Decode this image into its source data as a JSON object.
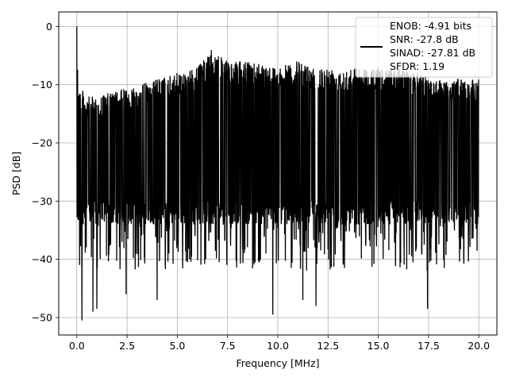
{
  "chart_data": {
    "type": "line",
    "title": "",
    "xlabel": "Frequency [MHz]",
    "ylabel": "PSD [dB]",
    "xlim": [
      -0.9,
      20.9
    ],
    "ylim": [
      -53.0,
      2.5
    ],
    "xticks": [
      0.0,
      2.5,
      5.0,
      7.5,
      10.0,
      12.5,
      15.0,
      17.5,
      20.0
    ],
    "xtick_labels": [
      "0.0",
      "2.5",
      "5.0",
      "7.5",
      "10.0",
      "12.5",
      "15.0",
      "17.5",
      "20.0"
    ],
    "yticks": [
      0,
      -10,
      -20,
      -30,
      -40,
      -50
    ],
    "ytick_labels": [
      "0",
      "−10",
      "−20",
      "−30",
      "−40",
      "−50"
    ],
    "grid": true,
    "legend_position": "upper-right",
    "series": [
      {
        "name": "ENOB: -4.91 bits\nSNR: -27.8 dB\nSINAD: -27.81 dB\nSFDR: 1.19",
        "legend_lines": [
          "ENOB: -4.91 bits",
          "SNR: -27.8 dB",
          "SINAD: -27.81 dB",
          "SFDR: 1.19"
        ],
        "color": "#000000",
        "x_range": [
          0.0,
          20.0
        ],
        "approx_points": 2048,
        "envelope_upper_db": [
          [
            0.0,
            0.0
          ],
          [
            0.1,
            -10
          ],
          [
            0.5,
            -12
          ],
          [
            1.0,
            -12
          ],
          [
            2.0,
            -11
          ],
          [
            3.0,
            -10
          ],
          [
            4.0,
            -9
          ],
          [
            5.0,
            -8
          ],
          [
            6.0,
            -7
          ],
          [
            6.7,
            -4
          ],
          [
            7.5,
            -6
          ],
          [
            9.0,
            -6
          ],
          [
            10.0,
            -7
          ],
          [
            11.0,
            -6
          ],
          [
            12.0,
            -7
          ],
          [
            13.0,
            -7
          ],
          [
            14.0,
            -7
          ],
          [
            15.0,
            -7
          ],
          [
            16.0,
            -7
          ],
          [
            17.0,
            -8
          ],
          [
            18.0,
            -9
          ],
          [
            19.0,
            -9
          ],
          [
            20.0,
            -9
          ]
        ],
        "typical_lower_db": -34,
        "notable_dips_db": [
          [
            0.25,
            -50.5
          ],
          [
            0.8,
            -49
          ],
          [
            1.0,
            -48.5
          ],
          [
            2.45,
            -46
          ],
          [
            4.0,
            -47
          ],
          [
            9.75,
            -49.5
          ],
          [
            11.25,
            -47
          ],
          [
            11.9,
            -48
          ],
          [
            17.45,
            -48.5
          ]
        ]
      }
    ]
  }
}
